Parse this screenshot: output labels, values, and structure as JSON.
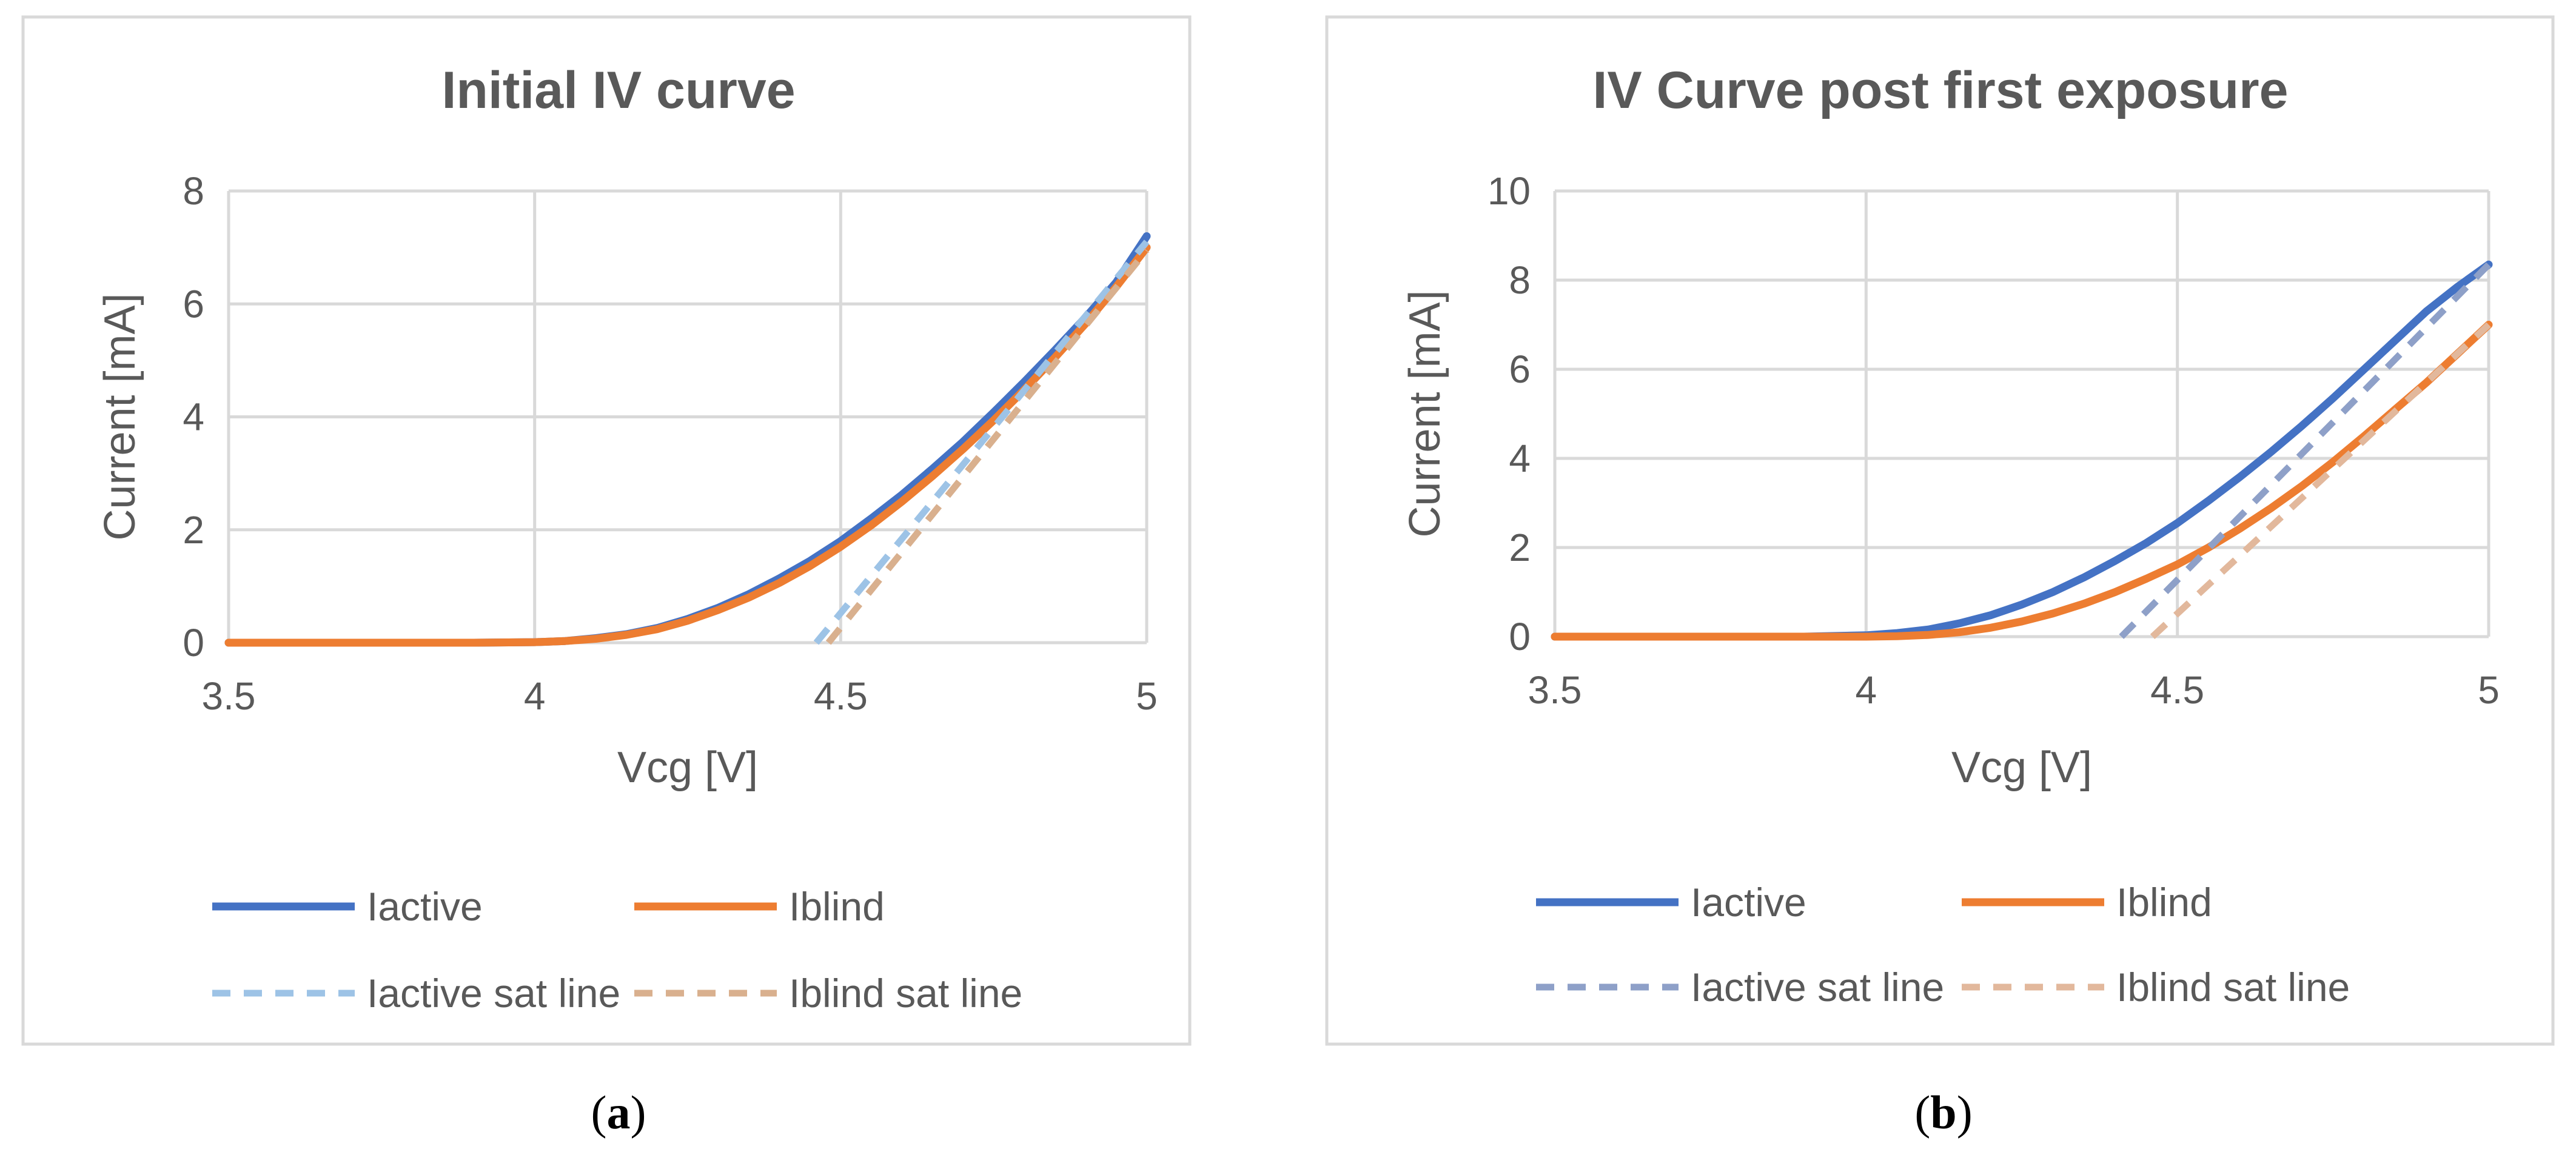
{
  "colors": {
    "active": "#4472C4",
    "blind": "#ED7D31",
    "active_sat_a": "#9DC3E6",
    "blind_sat_a": "#D9B08E",
    "active_sat_b": "#8EA0C8",
    "blind_sat_b": "#E2B89C",
    "grid": "#D9D9D9",
    "text": "#595959",
    "frame": "#D9D9D9"
  },
  "captions": {
    "a": "a",
    "b": "b"
  },
  "chart_data": [
    {
      "type": "line",
      "title": "Initial IV curve",
      "xlabel": "Vcg [V]",
      "ylabel": "Current [mA]",
      "xlim": [
        3.5,
        5
      ],
      "ylim": [
        0,
        8
      ],
      "xticks": [
        3.5,
        4,
        4.5,
        5
      ],
      "xtick_labels": [
        "3.5",
        "4",
        "4.5",
        "5"
      ],
      "yticks": [
        0,
        2,
        4,
        6,
        8
      ],
      "ytick_labels": [
        "0",
        "2",
        "4",
        "6",
        "8"
      ],
      "grid": true,
      "legend_position": "bottom",
      "series": [
        {
          "name": "Iactive",
          "style": "solid",
          "color_key": "active",
          "x": [
            3.5,
            3.6,
            3.7,
            3.8,
            3.9,
            4.0,
            4.05,
            4.1,
            4.15,
            4.2,
            4.25,
            4.3,
            4.35,
            4.4,
            4.45,
            4.5,
            4.55,
            4.6,
            4.65,
            4.7,
            4.75,
            4.8,
            4.85,
            4.9,
            4.95,
            5.0
          ],
          "y": [
            0,
            0,
            0,
            0,
            0,
            0.01,
            0.03,
            0.08,
            0.15,
            0.26,
            0.42,
            0.62,
            0.86,
            1.14,
            1.45,
            1.8,
            2.2,
            2.62,
            3.08,
            3.56,
            4.08,
            4.62,
            5.18,
            5.76,
            6.38,
            7.2
          ]
        },
        {
          "name": "Iblind",
          "style": "solid",
          "color_key": "blind",
          "x": [
            3.5,
            3.6,
            3.7,
            3.8,
            3.9,
            4.0,
            4.05,
            4.1,
            4.15,
            4.2,
            4.25,
            4.3,
            4.35,
            4.4,
            4.45,
            4.5,
            4.55,
            4.6,
            4.65,
            4.7,
            4.75,
            4.8,
            4.85,
            4.9,
            4.95,
            5.0
          ],
          "y": [
            0,
            0,
            0,
            0,
            0,
            0.01,
            0.03,
            0.07,
            0.14,
            0.24,
            0.39,
            0.58,
            0.8,
            1.06,
            1.36,
            1.7,
            2.08,
            2.5,
            2.95,
            3.43,
            3.94,
            4.48,
            5.05,
            5.65,
            6.3,
            7.0
          ]
        },
        {
          "name": "Iactive sat line",
          "style": "dashed",
          "color_key": "active_sat_a",
          "x": [
            4.46,
            5.0
          ],
          "y": [
            0,
            7.1
          ]
        },
        {
          "name": "Iblind sat line",
          "style": "dashed",
          "color_key": "blind_sat_a",
          "x": [
            4.48,
            5.0
          ],
          "y": [
            0,
            6.95
          ]
        }
      ]
    },
    {
      "type": "line",
      "title": "IV Curve post first exposure",
      "xlabel": "Vcg [V]",
      "ylabel": "Current [mA]",
      "xlim": [
        3.5,
        5
      ],
      "ylim": [
        0,
        10
      ],
      "xticks": [
        3.5,
        4,
        4.5,
        5
      ],
      "xtick_labels": [
        "3.5",
        "4",
        "4.5",
        "5"
      ],
      "yticks": [
        0,
        2,
        4,
        6,
        8,
        10
      ],
      "ytick_labels": [
        "0",
        "2",
        "4",
        "6",
        "8",
        "10"
      ],
      "grid": true,
      "legend_position": "bottom",
      "series": [
        {
          "name": "Iactive",
          "style": "solid",
          "color_key": "active",
          "x": [
            3.5,
            3.6,
            3.7,
            3.8,
            3.9,
            4.0,
            4.05,
            4.1,
            4.15,
            4.2,
            4.25,
            4.3,
            4.35,
            4.4,
            4.45,
            4.5,
            4.55,
            4.6,
            4.65,
            4.7,
            4.75,
            4.8,
            4.85,
            4.9,
            4.95,
            5.0
          ],
          "y": [
            0,
            0,
            0,
            0,
            0,
            0.03,
            0.08,
            0.16,
            0.3,
            0.48,
            0.72,
            1.0,
            1.33,
            1.7,
            2.1,
            2.55,
            3.05,
            3.58,
            4.14,
            4.73,
            5.35,
            6.0,
            6.65,
            7.3,
            7.85,
            8.35
          ]
        },
        {
          "name": "Iblind",
          "style": "solid",
          "color_key": "blind",
          "x": [
            3.5,
            3.6,
            3.7,
            3.8,
            3.9,
            4.0,
            4.05,
            4.1,
            4.15,
            4.2,
            4.25,
            4.3,
            4.35,
            4.4,
            4.45,
            4.5,
            4.55,
            4.6,
            4.65,
            4.7,
            4.75,
            4.8,
            4.85,
            4.9,
            4.95,
            5.0
          ],
          "y": [
            0,
            0,
            0,
            0,
            0,
            0,
            0.01,
            0.04,
            0.1,
            0.2,
            0.34,
            0.52,
            0.74,
            1.0,
            1.3,
            1.62,
            2.0,
            2.42,
            2.88,
            3.38,
            3.92,
            4.5,
            5.1,
            5.7,
            6.35,
            7.0
          ]
        },
        {
          "name": "Iactive sat line",
          "style": "dashed",
          "color_key": "active_sat_b",
          "x": [
            4.41,
            5.0
          ],
          "y": [
            0,
            8.35
          ]
        },
        {
          "name": "Iblind sat line",
          "style": "dashed",
          "color_key": "blind_sat_b",
          "x": [
            4.46,
            5.0
          ],
          "y": [
            0,
            7.0
          ]
        }
      ]
    }
  ]
}
